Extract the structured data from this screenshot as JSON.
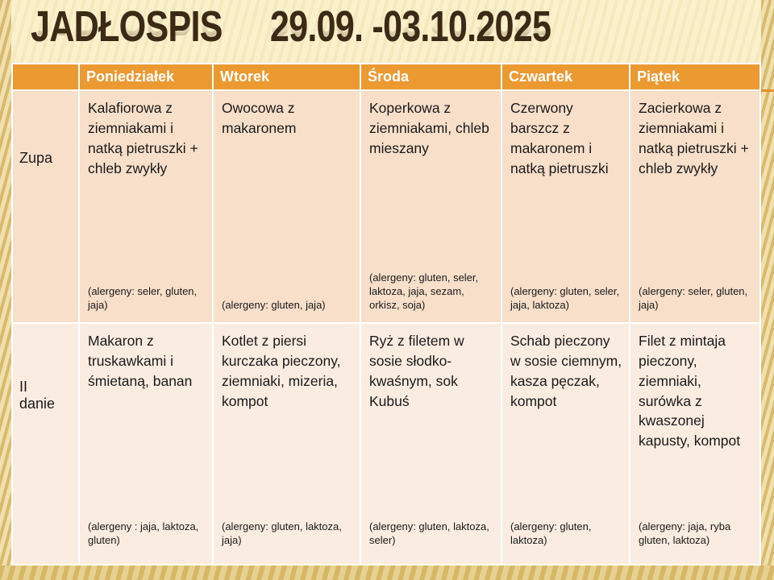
{
  "title": {
    "name": "JADŁOSPIS",
    "dates": "29.09. -03.10.2025"
  },
  "table": {
    "corner_label": "",
    "days": [
      "Poniedziałek",
      "Wtorek",
      "Środa",
      "Czwartek",
      "Piątek"
    ],
    "rows": [
      {
        "label": "Zupa",
        "cells": [
          {
            "dish": "Kalafiorowa z ziemniakami i natką pietruszki + chleb zwykły",
            "allergens": "(alergeny: seler, gluten, jaja)"
          },
          {
            "dish": "Owocowa z makaronem",
            "allergens": "(alergeny: gluten, jaja)"
          },
          {
            "dish": "Koperkowa z ziemniakami, chleb mieszany",
            "allergens": "(alergeny: gluten, seler, laktoza, jaja, sezam, orkisz, soja)"
          },
          {
            "dish": "Czerwony barszcz z makaronem i natką pietruszki",
            "allergens": "(alergeny: gluten, seler, jaja, laktoza)"
          },
          {
            "dish": "Zacierkowa z ziemniakami i natką pietruszki + chleb zwykły",
            "allergens": "(alergeny: seler, gluten, jaja)"
          }
        ]
      },
      {
        "label": "II danie",
        "cells": [
          {
            "dish": "Makaron z truskawkami i śmietaną, banan",
            "allergens": "(alergeny : jaja, laktoza, gluten)"
          },
          {
            "dish": "Kotlet z piersi kurczaka pieczony, ziemniaki, mizeria, kompot",
            "allergens": "(alergeny: gluten, laktoza, jaja)"
          },
          {
            "dish": "Ryż z filetem w sosie słodko-kwaśnym, sok Kubuś",
            "allergens": "(alergeny: gluten, laktoza, seler)"
          },
          {
            "dish": "Schab pieczony w sosie ciemnym, kasza pęczak, kompot",
            "allergens": "(alergeny: gluten, laktoza)"
          },
          {
            "dish": "Filet z mintaja pieczony, ziemniaki, surówka z kwaszonej kapusty, kompot",
            "allergens": "(alergeny: jaja, ryba gluten, laktoza)"
          }
        ]
      }
    ]
  },
  "colors": {
    "slide_background": "#FAF1CC",
    "header_orange": "#EA9A31",
    "accent_line_orange": "#E2912E",
    "soup_row_background": "#F8DFC9",
    "main_row_background": "#FBECE1",
    "gold_stripe": "#D8BA6E",
    "title_text": "#3A2A16",
    "grid_border": "#FFFFFF"
  }
}
